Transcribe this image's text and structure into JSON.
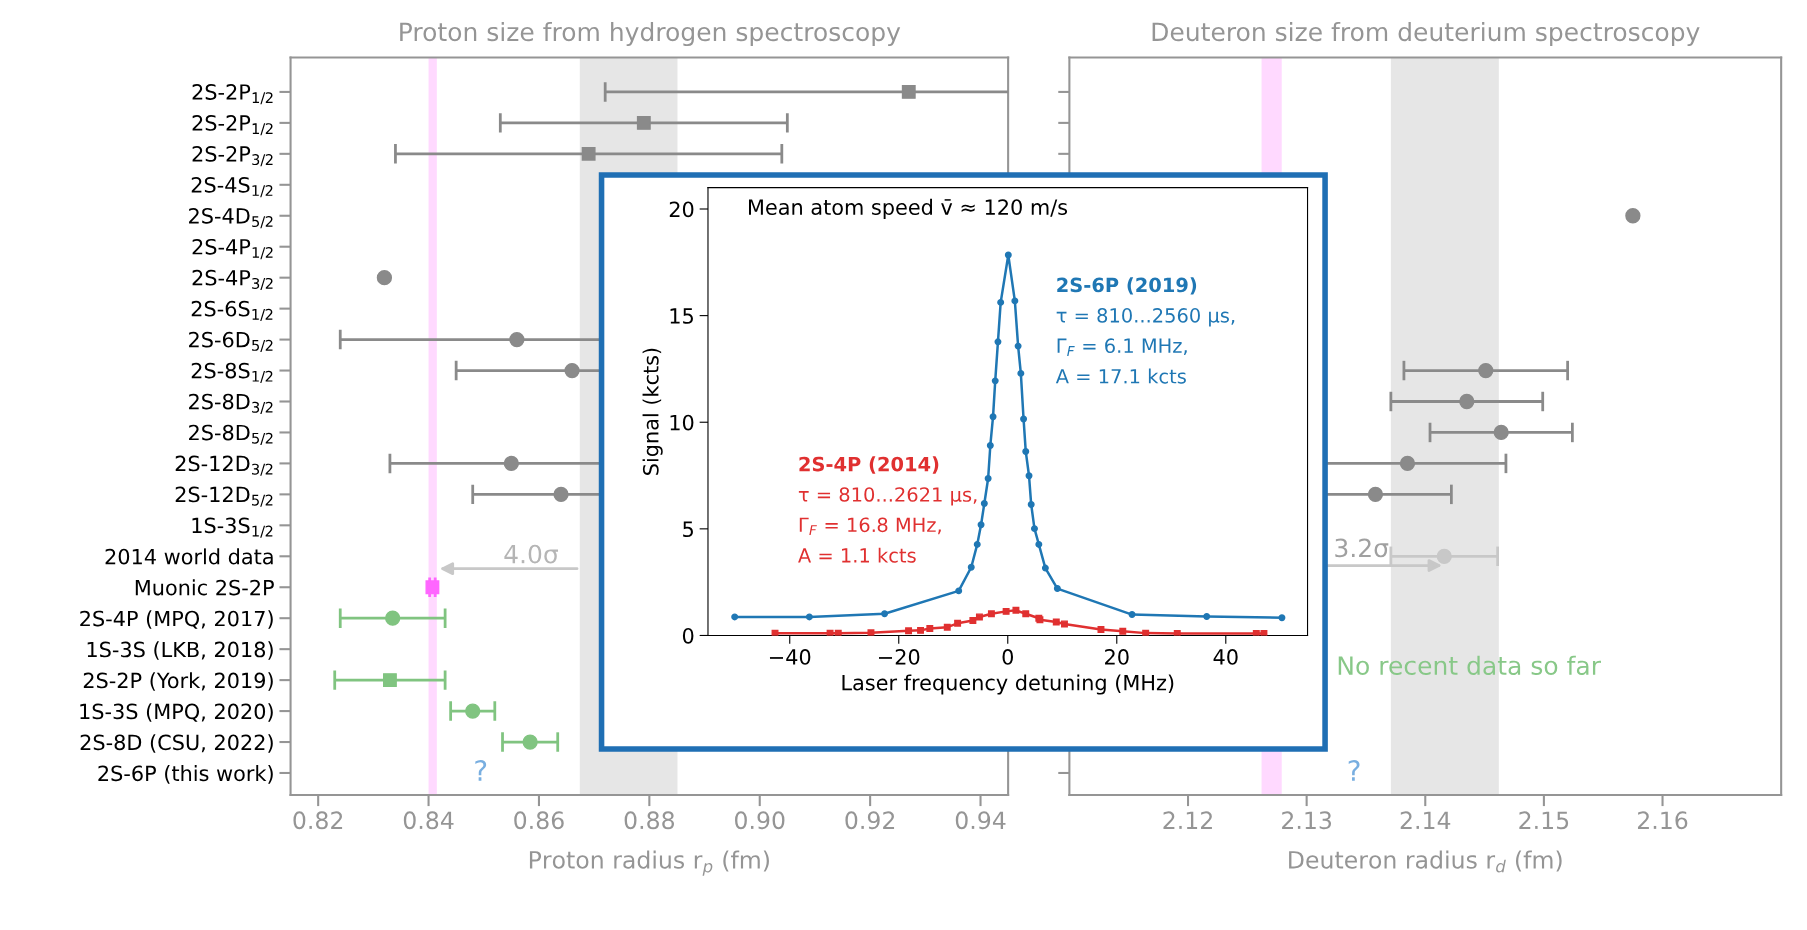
{
  "chart_data": [
    {
      "type": "scatter",
      "orientation": "horizontal",
      "title": "Proton size from hydrogen spectroscopy",
      "xlabel": "Proton radius r$_{p}$ (fm)",
      "categories": [
        "2S-2P$_{1/2}$",
        "2S-2P$_{1/2}$",
        "2S-2P$_{3/2}$",
        "2S-4S$_{1/2}$",
        "2S-4D$_{5/2}$",
        "2S-4P$_{1/2}$",
        "2S-4P$_{3/2}$",
        "2S-6S$_{1/2}$",
        "2S-6D$_{5/2}$",
        "2S-8S$_{1/2}$",
        "2S-8D$_{3/2}$",
        "2S-8D$_{5/2}$",
        "2S-12D$_{3/2}$",
        "2S-12D$_{5/2}$",
        "1S-3S$_{1/2}$",
        "2014 world data",
        "Muonic 2S-2P",
        "2S-4P (MPQ, 2017)",
        "1S-3S (LKB, 2018)",
        "2S-2P (York, 2019)",
        "1S-3S (MPQ, 2020)",
        "2S-8D (CSU, 2022)",
        "2S-6P (this work)"
      ],
      "series": [
        {
          "color": "#8a8a8a",
          "marker": "square",
          "values": [
            0.927,
            0.879,
            0.869,
            null,
            null,
            null,
            null,
            null,
            null,
            null,
            null,
            null,
            null,
            null,
            null,
            null,
            null,
            null,
            null,
            null,
            null,
            null,
            null
          ],
          "errors": [
            0.055,
            0.026,
            0.035,
            null,
            null,
            null,
            null,
            null,
            null,
            null,
            null,
            null,
            null,
            null,
            null,
            null,
            null,
            null,
            null,
            null,
            null,
            null,
            null
          ]
        },
        {
          "color": "#8a8a8a",
          "marker": "circle",
          "values": [
            null,
            null,
            null,
            null,
            null,
            null,
            0.832,
            null,
            0.856,
            0.866,
            null,
            null,
            0.855,
            0.864,
            null,
            null,
            null,
            null,
            null,
            null,
            null,
            null,
            null
          ],
          "errors": [
            null,
            null,
            null,
            null,
            null,
            null,
            null,
            null,
            0.032,
            0.021,
            null,
            null,
            0.022,
            0.016,
            null,
            null,
            null,
            null,
            null,
            null,
            null,
            null,
            null
          ]
        },
        {
          "color": "#ff66ff",
          "marker": "square",
          "values": [
            null,
            null,
            null,
            null,
            null,
            null,
            null,
            null,
            null,
            null,
            null,
            null,
            null,
            null,
            null,
            null,
            0.8407,
            null,
            null,
            null,
            null,
            null,
            null
          ],
          "errors": [
            null,
            null,
            null,
            null,
            null,
            null,
            null,
            null,
            null,
            null,
            null,
            null,
            null,
            null,
            null,
            null,
            0.0005,
            null,
            null,
            null,
            null,
            null,
            null
          ]
        },
        {
          "color": "#80c480",
          "marker": "circle",
          "values": [
            null,
            null,
            null,
            null,
            null,
            null,
            null,
            null,
            null,
            null,
            null,
            null,
            null,
            null,
            null,
            null,
            null,
            0.8335,
            null,
            null,
            0.848,
            0.8584,
            null
          ],
          "errors": [
            null,
            null,
            null,
            null,
            null,
            null,
            null,
            null,
            null,
            null,
            null,
            null,
            null,
            null,
            null,
            null,
            null,
            0.0095,
            null,
            null,
            0.004,
            0.005,
            null
          ]
        },
        {
          "color": "#80c480",
          "marker": "square",
          "values": [
            null,
            null,
            null,
            null,
            null,
            null,
            null,
            null,
            null,
            null,
            null,
            null,
            null,
            null,
            null,
            null,
            null,
            null,
            null,
            0.833,
            null,
            null,
            null
          ],
          "errors": [
            null,
            null,
            null,
            null,
            null,
            null,
            null,
            null,
            null,
            null,
            null,
            null,
            null,
            null,
            null,
            null,
            null,
            null,
            null,
            0.01,
            null,
            null,
            null
          ]
        }
      ],
      "bands": [
        {
          "axis": "x",
          "from": 0.84,
          "to": 0.8415,
          "color": "#ffd9ff"
        },
        {
          "axis": "x",
          "from": 0.8674,
          "to": 0.8851,
          "color": "#e6e6e6"
        }
      ],
      "annotations": [
        "4.0σ",
        "?"
      ],
      "xlim": [
        0.815,
        0.945
      ],
      "xticks": [
        0.82,
        0.84,
        0.86,
        0.88,
        {
          "value": 0.9,
          "label": "0.90"
        },
        0.92,
        0.94
      ]
    },
    {
      "type": "scatter",
      "orientation": "horizontal",
      "title": "Deuteron size from deuterium spectroscopy",
      "xlabel": "Deuteron radius r$_{d}$ (fm)",
      "tick_labels": "x",
      "categories": [
        null,
        null,
        null,
        null,
        null,
        null,
        null,
        null,
        null,
        null,
        null,
        null,
        null,
        null,
        null,
        null,
        null,
        null,
        null,
        null,
        null,
        null,
        null
      ],
      "series": [
        {
          "color": "#8a8a8a",
          "marker": "circle",
          "values": [
            null,
            null,
            null,
            null,
            2.1575,
            null,
            null,
            null,
            null,
            2.1451,
            2.1435,
            2.1464,
            2.1385,
            2.1358,
            null,
            null,
            null,
            null,
            null,
            null,
            null,
            null,
            null
          ],
          "errors": [
            null,
            null,
            null,
            null,
            null,
            null,
            null,
            null,
            null,
            0.0069,
            0.0064,
            0.006,
            0.0083,
            0.0064,
            null,
            null,
            null,
            null,
            null,
            null,
            null,
            null,
            null
          ]
        },
        {
          "color": "#c8c8c8",
          "marker": "circle",
          "values": [
            null,
            null,
            null,
            null,
            null,
            null,
            null,
            null,
            null,
            null,
            null,
            null,
            null,
            null,
            null,
            2.1416,
            null,
            null,
            null,
            null,
            null,
            null,
            null
          ],
          "errors": [
            null,
            null,
            null,
            null,
            null,
            null,
            null,
            null,
            null,
            null,
            null,
            null,
            null,
            null,
            null,
            0.0045,
            null,
            null,
            null,
            null,
            null,
            null,
            null
          ]
        }
      ],
      "bands": [
        {
          "axis": "x",
          "from": 2.1262,
          "to": 2.1279,
          "color": "#ffd9ff"
        },
        {
          "axis": "x",
          "from": 2.1371,
          "to": 2.1462,
          "color": "#e6e6e6"
        }
      ],
      "annotations": [
        "3.2σ",
        "No recent data so far",
        "?"
      ],
      "xlim": [
        2.11,
        2.17
      ],
      "xticks": [
        2.12,
        2.13,
        2.14,
        2.15,
        2.16
      ]
    },
    {
      "type": "line",
      "xlabel": "Laser frequency detuning (MHz)",
      "ylabel": "Signal (kcts)",
      "annotations": [
        "Mean atom speed v̄ ≈ 120 m/s"
      ],
      "series": [
        {
          "name": "2S-6P (2019)\nτ = 810...2560 µs,\nΓ$_{F}$ = 6.1 MHz,\nA = 17.1 kcts",
          "color": "#1f77b4",
          "marker": "circle",
          "x": [
            -50.1,
            -36.4,
            -22.6,
            -9.0,
            -6.7,
            -5.6,
            -4.9,
            -4.3,
            -3.6,
            -3.2,
            -2.7,
            -2.3,
            -1.8,
            -1.3,
            0.1,
            1.3,
            1.9,
            2.4,
            2.9,
            3.3,
            3.9,
            4.3,
            4.9,
            5.7,
            6.9,
            9.1,
            22.8,
            36.5,
            50.3
          ],
          "values": [
            0.87,
            0.87,
            1.02,
            2.09,
            3.2,
            4.27,
            5.19,
            6.19,
            7.36,
            8.91,
            10.26,
            11.94,
            13.77,
            15.62,
            17.84,
            15.69,
            13.57,
            12.29,
            10.15,
            8.63,
            7.49,
            6.14,
            5.01,
            4.27,
            3.16,
            2.2,
            0.98,
            0.89,
            0.83
          ]
        },
        {
          "name": "2S-4P (2014)\nτ = 810...2621 µs,\nΓ$_{F}$ = 16.8 MHz,\nA = 1.1 kcts",
          "color": "#e03030",
          "marker": "square",
          "x": [
            -42.7,
            -32.6,
            -31.1,
            -25.1,
            -18.2,
            -16.0,
            -14.3,
            -11.1,
            -9.2,
            -6.4,
            -5.2,
            -3.0,
            -0.3,
            1.5,
            3.3,
            5.7,
            5.9,
            8.9,
            10.4,
            17.1,
            21.1,
            25.3,
            31.1,
            45.6,
            47.0
          ],
          "values": [
            0.1,
            0.1,
            0.1,
            0.13,
            0.22,
            0.24,
            0.33,
            0.39,
            0.57,
            0.7,
            0.87,
            1.02,
            1.13,
            1.18,
            1.02,
            0.81,
            0.74,
            0.63,
            0.54,
            0.28,
            0.2,
            0.11,
            0.09,
            0.09,
            0.09
          ]
        }
      ],
      "xlim": [
        -55,
        55
      ],
      "xticks": [
        {
          "value": -40,
          "label": "−40"
        },
        {
          "value": -20,
          "label": "−20"
        },
        0,
        20,
        40
      ],
      "ylim": [
        0,
        21
      ],
      "yticks": [
        0,
        5,
        10,
        15,
        20
      ]
    }
  ]
}
